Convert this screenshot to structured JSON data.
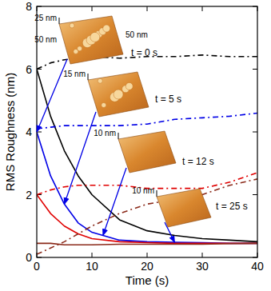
{
  "chart_data": {
    "type": "line",
    "x_label": "Time (s)",
    "y_label": "RMS Roughness (nm)",
    "x": [
      0,
      2.5,
      5,
      7.5,
      10,
      15,
      20,
      25,
      30,
      35,
      40
    ],
    "series": [
      {
        "color": "#000000",
        "line_style": "solid",
        "values": [
          6.0,
          4.5,
          3.4,
          2.6,
          2.0,
          1.2,
          0.85,
          0.7,
          0.6,
          0.55,
          0.5
        ]
      },
      {
        "color": "#0000e6",
        "line_style": "solid",
        "values": [
          4.0,
          2.6,
          1.7,
          1.1,
          0.8,
          0.55,
          0.5,
          0.48,
          0.47,
          0.45,
          0.45
        ]
      },
      {
        "color": "#e00000",
        "line_style": "solid",
        "values": [
          2.0,
          1.4,
          1.0,
          0.75,
          0.6,
          0.5,
          0.47,
          0.45,
          0.45,
          0.45,
          0.45
        ]
      },
      {
        "color": "#8b2a1a",
        "line_style": "solid",
        "values": [
          0.45,
          0.45,
          0.4,
          0.4,
          0.4,
          0.42,
          0.42,
          0.42,
          0.42,
          0.44,
          0.45
        ]
      },
      {
        "color": "#000000",
        "line_style": "dashed",
        "values": [
          6.0,
          6.2,
          6.3,
          6.35,
          6.4,
          6.35,
          6.4,
          6.4,
          6.45,
          6.4,
          6.4
        ]
      },
      {
        "color": "#0000e6",
        "line_style": "dashed",
        "values": [
          4.1,
          4.15,
          4.2,
          4.2,
          4.2,
          4.2,
          4.25,
          4.4,
          4.45,
          4.5,
          4.6
        ]
      },
      {
        "color": "#e00000",
        "line_style": "dashed",
        "values": [
          2.0,
          2.15,
          2.25,
          2.3,
          2.3,
          2.3,
          2.2,
          2.2,
          2.2,
          2.4,
          2.7
        ]
      },
      {
        "color": "#8b2a1a",
        "line_style": "dashed",
        "values": [
          0.1,
          0.3,
          0.5,
          0.75,
          1.0,
          1.4,
          1.7,
          1.85,
          2.0,
          2.3,
          2.5
        ]
      }
    ],
    "xlim": [
      0,
      40
    ],
    "xticks": [
      0,
      10,
      20,
      30,
      40
    ],
    "ylim": [
      0,
      8
    ],
    "yticks": [
      0,
      2,
      4,
      6,
      8
    ],
    "grid": false,
    "annotations": [
      {
        "text": "t = 0 s",
        "x": 0,
        "y": 4.0,
        "labels": [
          "25 nm",
          "50 nm",
          "50 nm"
        ]
      },
      {
        "text": "t = 5 s",
        "x": 5,
        "y": 1.7,
        "labels": [
          "15 nm"
        ]
      },
      {
        "text": "t = 12 s",
        "x": 12,
        "y": 0.7,
        "labels": [
          "10 nm"
        ]
      },
      {
        "text": "t = 25 s",
        "x": 25,
        "y": 0.48,
        "labels": [
          "10 nm"
        ]
      }
    ]
  }
}
